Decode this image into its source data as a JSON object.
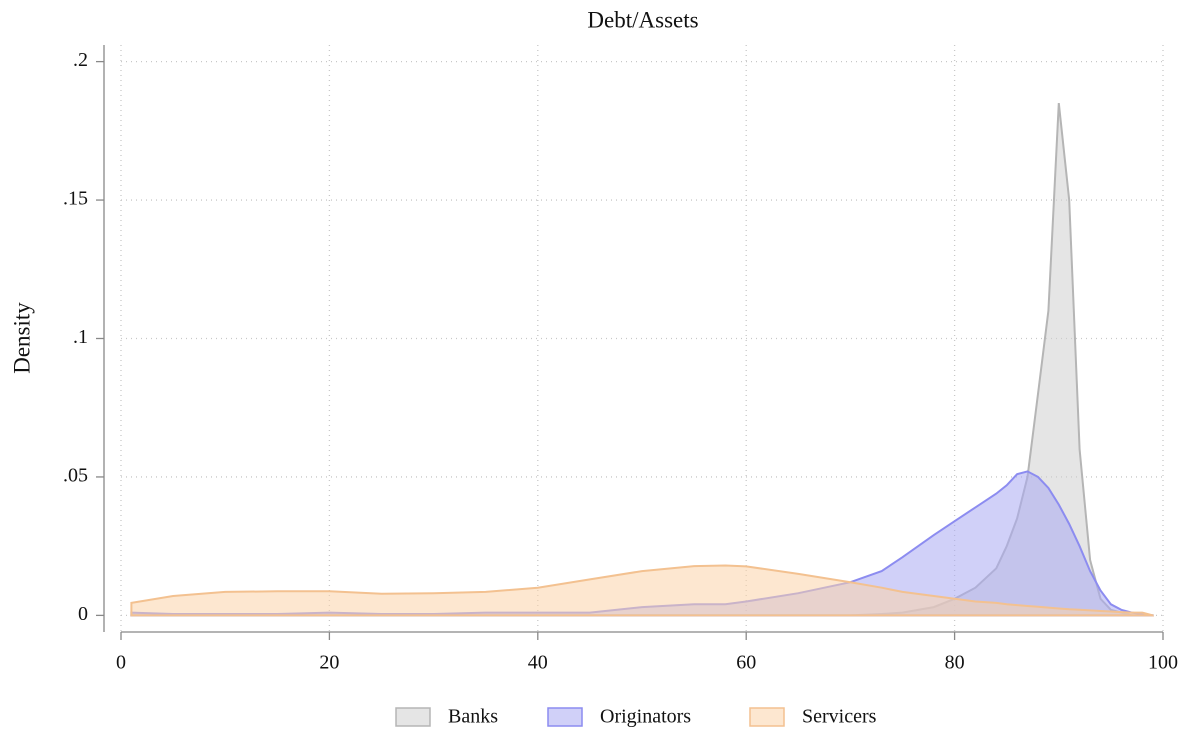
{
  "chart_data": {
    "type": "area",
    "title": "Debt/Assets",
    "y_label": "Density",
    "x": [
      1,
      5,
      10,
      15,
      20,
      25,
      30,
      35,
      40,
      45,
      50,
      55,
      58,
      60,
      65,
      70,
      73,
      75,
      78,
      80,
      82,
      84,
      85,
      86,
      87,
      88,
      89,
      90,
      91,
      92,
      93,
      94,
      95,
      96,
      97,
      98,
      99
    ],
    "series": [
      {
        "name": "Banks",
        "color": "#cfcfcf",
        "stroke": "#b5b5b5",
        "values": [
          0,
          0,
          0,
          0,
          0,
          0,
          0,
          0,
          0,
          0,
          0,
          0,
          0,
          0,
          0,
          0,
          0.0005,
          0.001,
          0.003,
          0.006,
          0.01,
          0.017,
          0.025,
          0.035,
          0.05,
          0.08,
          0.11,
          0.185,
          0.15,
          0.06,
          0.02,
          0.006,
          0.002,
          0.001,
          0,
          0,
          0
        ]
      },
      {
        "name": "Originators",
        "color": "#a9a9f2",
        "stroke": "#8c8cf0",
        "values": [
          0.001,
          0.0005,
          0.0005,
          0.0005,
          0.001,
          0.0005,
          0.0005,
          0.001,
          0.001,
          0.001,
          0.003,
          0.004,
          0.004,
          0.005,
          0.008,
          0.012,
          0.016,
          0.021,
          0.029,
          0.034,
          0.039,
          0.044,
          0.047,
          0.051,
          0.052,
          0.05,
          0.046,
          0.04,
          0.033,
          0.025,
          0.016,
          0.009,
          0.004,
          0.002,
          0.001,
          0.0005,
          0
        ]
      },
      {
        "name": "Servicers",
        "color": "#fbd3aa",
        "stroke": "#f3c190",
        "values": [
          0.0045,
          0.007,
          0.0085,
          0.0087,
          0.0087,
          0.0078,
          0.008,
          0.0085,
          0.01,
          0.013,
          0.016,
          0.0178,
          0.018,
          0.0177,
          0.015,
          0.012,
          0.01,
          0.0085,
          0.007,
          0.006,
          0.005,
          0.0045,
          0.004,
          0.0037,
          0.0034,
          0.0031,
          0.0028,
          0.0025,
          0.0022,
          0.002,
          0.0018,
          0.0016,
          0.0014,
          0.0012,
          0.001,
          0.001,
          0
        ]
      }
    ],
    "xlim": [
      0,
      100
    ],
    "xticks": [
      0,
      20,
      40,
      60,
      80,
      100
    ],
    "ylim": [
      -0.006,
      0.206
    ],
    "yticks": [
      0,
      {
        "value": 0.05,
        "label": ".05"
      },
      {
        "value": 0.1,
        "label": ".1"
      },
      {
        "value": 0.15,
        "label": ".15"
      },
      {
        "value": 0.2,
        "label": ".2"
      }
    ],
    "grid": true
  }
}
